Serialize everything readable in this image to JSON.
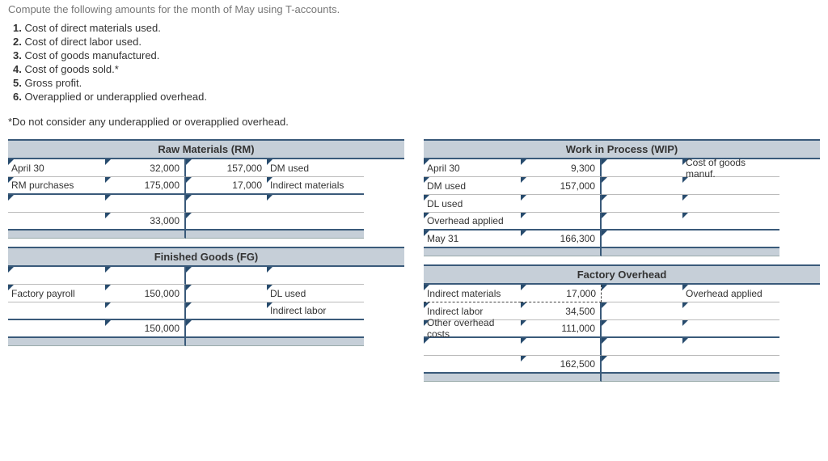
{
  "intro": "Compute the following amounts for the month of May using T-accounts.",
  "list": [
    {
      "n": "1.",
      "t": "Cost of direct materials used."
    },
    {
      "n": "2.",
      "t": "Cost of direct labor used."
    },
    {
      "n": "3.",
      "t": "Cost of goods manufactured."
    },
    {
      "n": "4.",
      "t": "Cost of goods sold.*"
    },
    {
      "n": "5.",
      "t": "Gross profit."
    },
    {
      "n": "6.",
      "t": "Overapplied or underapplied overhead."
    }
  ],
  "note": "*Do not consider any underapplied or overapplied overhead.",
  "rm": {
    "title": "Raw Materials (RM)",
    "rows": [
      {
        "ll": "April 30",
        "vl": "32,000",
        "vr": "157,000",
        "lr": "DM used"
      },
      {
        "ll": "RM purchases",
        "vl": "175,000",
        "vr": "17,000",
        "lr": "Indirect materials"
      },
      {
        "ll": "",
        "vl": "",
        "vr": "",
        "lr": ""
      },
      {
        "ll": "",
        "vl": "33,000",
        "vr": "",
        "lr": ""
      }
    ]
  },
  "wip": {
    "title": "Work in Process (WIP)",
    "rows": [
      {
        "ll": "April 30",
        "vl": "9,300",
        "vr": "",
        "lr": "Cost of goods manuf."
      },
      {
        "ll": "DM used",
        "vl": "157,000",
        "vr": "",
        "lr": ""
      },
      {
        "ll": "DL used",
        "vl": "",
        "vr": "",
        "lr": ""
      },
      {
        "ll": "Overhead applied",
        "vl": "",
        "vr": "",
        "lr": ""
      },
      {
        "ll": "May 31",
        "vl": "166,300",
        "vr": "",
        "lr": ""
      }
    ]
  },
  "fg": {
    "title": "Finished Goods (FG)",
    "rows": [
      {
        "ll": "",
        "vl": "",
        "vr": "",
        "lr": ""
      },
      {
        "ll": "Factory payroll",
        "vl": "150,000",
        "vr": "",
        "lr": "DL used"
      },
      {
        "ll": "",
        "vl": "",
        "vr": "",
        "lr": "Indirect labor"
      },
      {
        "ll": "",
        "vl": "150,000",
        "vr": "",
        "lr": ""
      }
    ]
  },
  "fo": {
    "title": "Factory Overhead",
    "rows": [
      {
        "ll": "Indirect materials",
        "vl": "17,000",
        "vr": "",
        "lr": "Overhead applied"
      },
      {
        "ll": "Indirect labor",
        "vl": "34,500",
        "vr": "",
        "lr": ""
      },
      {
        "ll": "Other overhead costs",
        "vl": "111,000",
        "vr": "",
        "lr": ""
      },
      {
        "ll": "",
        "vl": "",
        "vr": "",
        "lr": ""
      },
      {
        "ll": "",
        "vl": "162,500",
        "vr": "",
        "lr": ""
      }
    ]
  }
}
